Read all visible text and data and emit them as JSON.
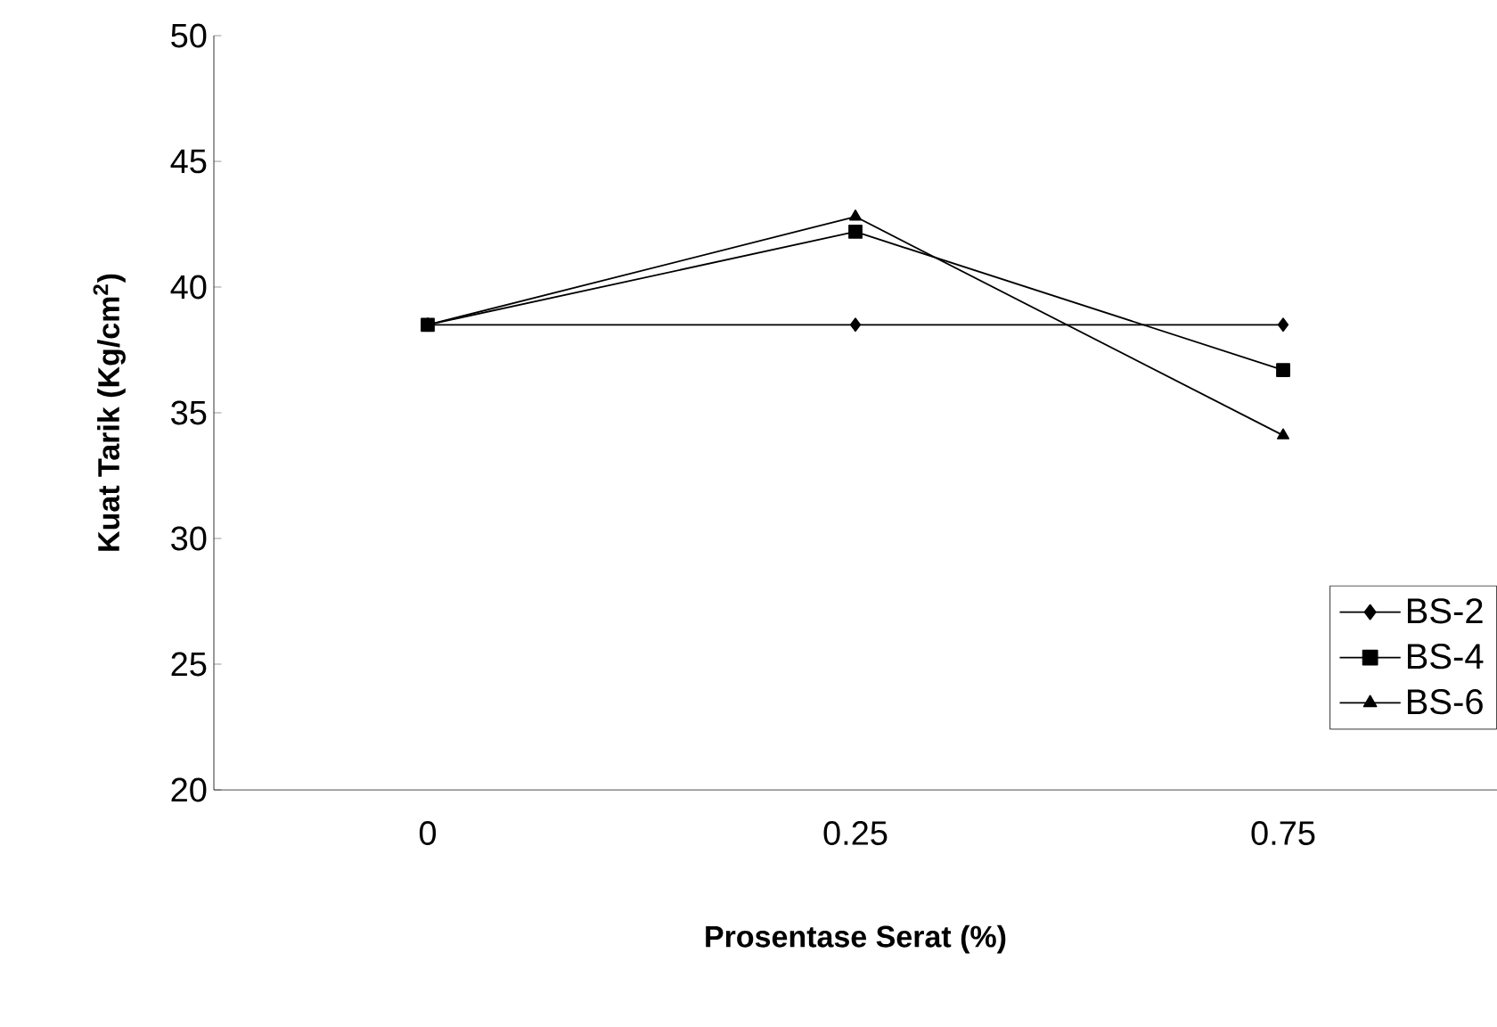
{
  "chart_data": {
    "type": "line",
    "xlabel": "Prosentase Serat (%)",
    "ylabel": "Kuat Tarik (Kg/cm$^{2}$)",
    "categories": [
      "0",
      "0.25",
      "0.75"
    ],
    "series": [
      {
        "name": "BS-2",
        "color": "#000000",
        "marker": "diamond",
        "values": [
          38.5,
          38.5,
          38.5
        ]
      },
      {
        "name": "BS-4",
        "color": "#000000",
        "marker": "square",
        "values": [
          38.5,
          42.2,
          36.7
        ]
      },
      {
        "name": "BS-6",
        "color": "#000000",
        "marker": "triangle",
        "values": [
          38.5,
          42.8,
          34.1
        ]
      }
    ],
    "ylim": [
      20,
      50
    ],
    "yticks": [
      20,
      25,
      30,
      35,
      40,
      45,
      50
    ],
    "legend": "bottom right",
    "grid": false,
    "line_style": "solid"
  }
}
